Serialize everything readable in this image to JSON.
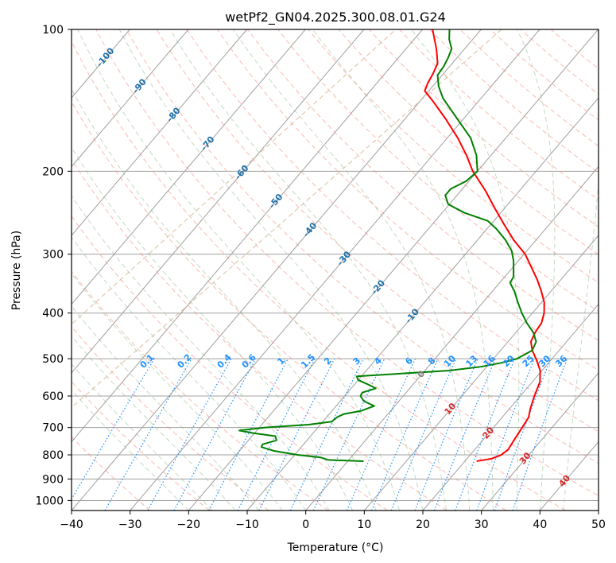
{
  "chart_data": {
    "type": "skew-t log-p",
    "title": "wetPf2_GN04.2025.300.08.01.G24",
    "xlabel": "Temperature (°C)",
    "ylabel": "Pressure (hPa)",
    "xlim": [
      -40,
      50
    ],
    "ylim": [
      1050,
      100
    ],
    "x_ticks": [
      -40,
      -30,
      -20,
      -10,
      0,
      10,
      20,
      30,
      40,
      50
    ],
    "x_tick_labels": [
      "−40",
      "−30",
      "−20",
      "−10",
      "0",
      "10",
      "20",
      "30",
      "40",
      "50"
    ],
    "y_ticks": [
      1000,
      900,
      800,
      700,
      600,
      500,
      400,
      300,
      200,
      100
    ],
    "y_tick_labels": [
      "1000",
      "900",
      "800",
      "700",
      "600",
      "500",
      "400",
      "300",
      "200",
      "100"
    ],
    "skew_degC_per_decade": 68.5,
    "colors": {
      "temperature": "#ff0000",
      "dewpoint": "#008000",
      "isotherm": "#a0a0a0",
      "dry_adiabat": "#fa8072",
      "moist_adiabat": "#8fbc8f",
      "mixing_ratio": "#1e90ff",
      "isotherm_label": "#1f6fa8",
      "ice_isotherm": "#d2b48c"
    },
    "series": [
      {
        "name": "Temperature",
        "points": [
          {
            "p": 825,
            "t": 22.0
          },
          {
            "p": 815,
            "t": 24.2
          },
          {
            "p": 800,
            "t": 25.3
          },
          {
            "p": 780,
            "t": 25.7
          },
          {
            "p": 740,
            "t": 25.3
          },
          {
            "p": 700,
            "t": 24.9
          },
          {
            "p": 665,
            "t": 24.5
          },
          {
            "p": 640,
            "t": 23.6
          },
          {
            "p": 600,
            "t": 22.4
          },
          {
            "p": 560,
            "t": 21.3
          },
          {
            "p": 530,
            "t": 19.7
          },
          {
            "p": 505,
            "t": 17.7
          },
          {
            "p": 480,
            "t": 15.4
          },
          {
            "p": 460,
            "t": 13.9
          },
          {
            "p": 440,
            "t": 13.3
          },
          {
            "p": 420,
            "t": 13.0
          },
          {
            "p": 400,
            "t": 12.0
          },
          {
            "p": 380,
            "t": 10.5
          },
          {
            "p": 360,
            "t": 8.4
          },
          {
            "p": 340,
            "t": 6.0
          },
          {
            "p": 320,
            "t": 3.2
          },
          {
            "p": 300,
            "t": 0.2
          },
          {
            "p": 280,
            "t": -3.8
          },
          {
            "p": 260,
            "t": -7.6
          },
          {
            "p": 240,
            "t": -11.6
          },
          {
            "p": 220,
            "t": -15.8
          },
          {
            "p": 200,
            "t": -20.8
          },
          {
            "p": 185,
            "t": -24.2
          },
          {
            "p": 170,
            "t": -28.2
          },
          {
            "p": 155,
            "t": -33.0
          },
          {
            "p": 142,
            "t": -37.8
          },
          {
            "p": 135,
            "t": -40.7
          },
          {
            "p": 130,
            "t": -41.3
          },
          {
            "p": 124,
            "t": -41.8
          },
          {
            "p": 118,
            "t": -42.5
          },
          {
            "p": 110,
            "t": -44.8
          },
          {
            "p": 105,
            "t": -46.5
          },
          {
            "p": 100,
            "t": -48.3
          }
        ]
      },
      {
        "name": "Dewpoint",
        "points": [
          {
            "p": 825,
            "t": 2.7
          },
          {
            "p": 820,
            "t": -3.5
          },
          {
            "p": 810,
            "t": -5.2
          },
          {
            "p": 800,
            "t": -9.5
          },
          {
            "p": 785,
            "t": -14.0
          },
          {
            "p": 770,
            "t": -16.8
          },
          {
            "p": 760,
            "t": -17.0
          },
          {
            "p": 745,
            "t": -15.2
          },
          {
            "p": 730,
            "t": -16.0
          },
          {
            "p": 720,
            "t": -20.0
          },
          {
            "p": 710,
            "t": -23.0
          },
          {
            "p": 700,
            "t": -19.0
          },
          {
            "p": 690,
            "t": -12.0
          },
          {
            "p": 680,
            "t": -8.5
          },
          {
            "p": 665,
            "t": -8.2
          },
          {
            "p": 655,
            "t": -7.5
          },
          {
            "p": 645,
            "t": -5.0
          },
          {
            "p": 630,
            "t": -3.5
          },
          {
            "p": 615,
            "t": -6.0
          },
          {
            "p": 600,
            "t": -7.3
          },
          {
            "p": 590,
            "t": -7.5
          },
          {
            "p": 578,
            "t": -5.8
          },
          {
            "p": 568,
            "t": -7.5
          },
          {
            "p": 555,
            "t": -10.0
          },
          {
            "p": 545,
            "t": -10.8
          },
          {
            "p": 538,
            "t": -4.0
          },
          {
            "p": 530,
            "t": 4.0
          },
          {
            "p": 520,
            "t": 9.0
          },
          {
            "p": 510,
            "t": 12.0
          },
          {
            "p": 500,
            "t": 14.0
          },
          {
            "p": 480,
            "t": 15.4
          },
          {
            "p": 460,
            "t": 14.8
          },
          {
            "p": 440,
            "t": 13.0
          },
          {
            "p": 420,
            "t": 10.5
          },
          {
            "p": 400,
            "t": 8.2
          },
          {
            "p": 380,
            "t": 6.0
          },
          {
            "p": 360,
            "t": 3.8
          },
          {
            "p": 345,
            "t": 1.8
          },
          {
            "p": 335,
            "t": 1.5
          },
          {
            "p": 325,
            "t": 0.6
          },
          {
            "p": 310,
            "t": -0.8
          },
          {
            "p": 295,
            "t": -2.6
          },
          {
            "p": 280,
            "t": -5.2
          },
          {
            "p": 265,
            "t": -8.4
          },
          {
            "p": 255,
            "t": -11.0
          },
          {
            "p": 245,
            "t": -16.2
          },
          {
            "p": 235,
            "t": -20.2
          },
          {
            "p": 225,
            "t": -22.0
          },
          {
            "p": 218,
            "t": -22.0
          },
          {
            "p": 210,
            "t": -20.5
          },
          {
            "p": 200,
            "t": -20.0
          },
          {
            "p": 185,
            "t": -22.5
          },
          {
            "p": 170,
            "t": -26.0
          },
          {
            "p": 155,
            "t": -31.0
          },
          {
            "p": 140,
            "t": -36.5
          },
          {
            "p": 132,
            "t": -39.0
          },
          {
            "p": 125,
            "t": -40.8
          },
          {
            "p": 120,
            "t": -41.0
          },
          {
            "p": 115,
            "t": -41.5
          },
          {
            "p": 110,
            "t": -42.2
          },
          {
            "p": 105,
            "t": -44.0
          },
          {
            "p": 100,
            "t": -45.4
          }
        ]
      }
    ],
    "isotherm_labels": [
      {
        "text": "-100",
        "t": -100
      },
      {
        "text": "-90",
        "t": -90
      },
      {
        "text": "-80",
        "t": -80
      },
      {
        "text": "-70",
        "t": -70
      },
      {
        "text": "-60",
        "t": -60
      },
      {
        "text": "-50",
        "t": -50
      },
      {
        "text": "-40",
        "t": -40
      },
      {
        "text": "-30",
        "t": -30
      },
      {
        "text": "-20",
        "t": -20
      },
      {
        "text": "-10",
        "t": -10
      }
    ],
    "zero_isotherm_label": "0",
    "above_zero_labels": [
      {
        "text": "10",
        "t": 10,
        "p": 640
      },
      {
        "text": "20",
        "t": 20,
        "p": 720
      },
      {
        "text": "30",
        "t": 30,
        "p": 815
      },
      {
        "text": "40",
        "t": 40,
        "p": 910
      }
    ],
    "mixing_ratio_values": [
      0.1,
      0.2,
      0.4,
      0.6,
      1,
      1.5,
      2,
      3,
      4,
      6,
      8,
      10,
      13,
      16,
      20,
      25,
      30,
      36
    ],
    "mixing_ratio_labels": [
      "0.1",
      "0.2",
      "0.4",
      "0.6",
      "1",
      "1.5",
      "2",
      "3",
      "4",
      "6",
      "8",
      "10",
      "13",
      "16",
      "20",
      "25",
      "30",
      "36"
    ]
  }
}
